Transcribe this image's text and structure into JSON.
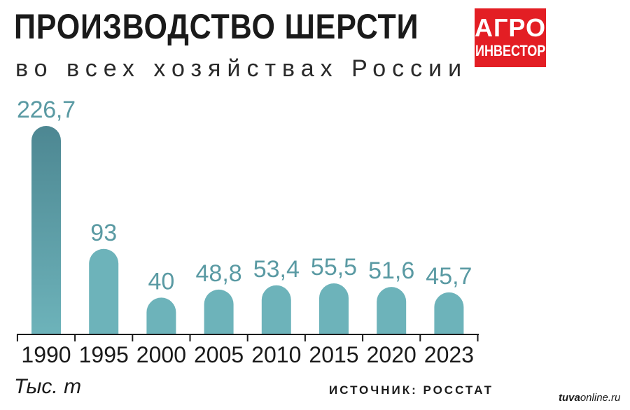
{
  "chart_data": {
    "type": "bar",
    "title": "ПРОИЗВОДСТВО ШЕРСТИ",
    "subtitle": "во всех хозяйствах России",
    "categories": [
      "1990",
      "1995",
      "2000",
      "2005",
      "2010",
      "2015",
      "2020",
      "2023"
    ],
    "values": [
      226.7,
      93,
      40,
      48.8,
      53.4,
      55.5,
      51.6,
      45.7
    ],
    "value_labels": [
      "226,7",
      "93",
      "40",
      "48,8",
      "53,4",
      "55,5",
      "51,6",
      "45,7"
    ],
    "ylabel": "Тыс. т",
    "ylim": [
      0,
      230
    ],
    "grid": false,
    "bar_color": "#6db3ba",
    "bar_color_top": "#4d8792",
    "label_color": "#5a9aa3"
  },
  "logo": {
    "line1": "АГРО",
    "line2": "ИНВЕСТОР",
    "color": "#e31e24"
  },
  "source": "ИСТОЧНИК: РОССТАТ",
  "watermark": {
    "bold": "tuva",
    "rest": "online.ru"
  }
}
